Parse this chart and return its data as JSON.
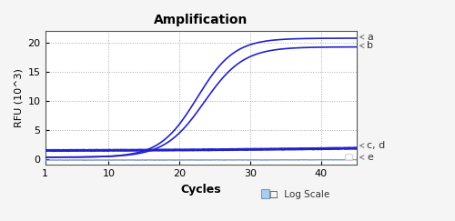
{
  "title": "Amplification",
  "xlabel": "Cycles",
  "ylabel": "RFU (10^3)",
  "xlim": [
    1,
    45
  ],
  "ylim": [
    -1,
    22
  ],
  "yticks": [
    0,
    5,
    10,
    15,
    20
  ],
  "xticks": [
    1,
    10,
    20,
    30,
    40
  ],
  "background_color": "#f5f5f5",
  "plot_bg_color": "#ffffff",
  "grid_color": "#aaaaaa",
  "curve_color_AB": "#2222cc",
  "curve_color_CD": "#2222cc",
  "curve_color_E": "#6688cc",
  "label_a": "a",
  "label_b": "b",
  "label_cd": "c, d",
  "label_e": "e",
  "log_scale_label": "Log Scale"
}
